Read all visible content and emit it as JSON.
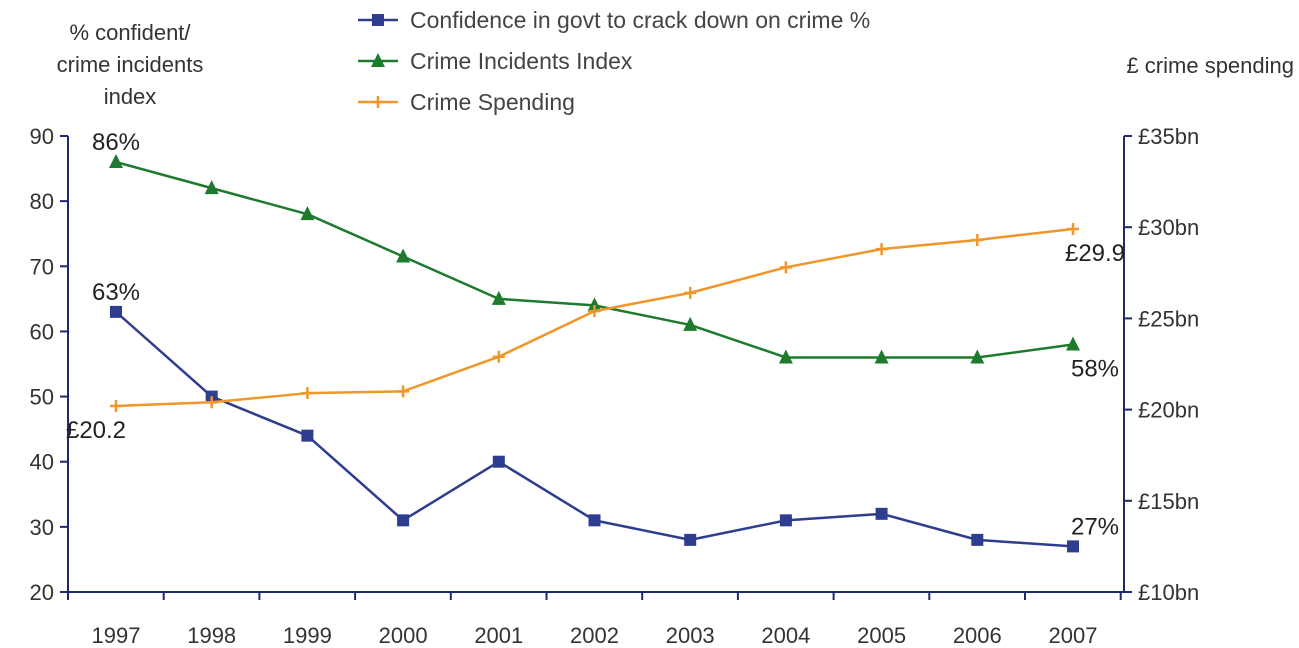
{
  "chart_data": {
    "type": "line",
    "categories": [
      "1997",
      "1998",
      "1999",
      "2000",
      "2001",
      "2002",
      "2003",
      "2004",
      "2005",
      "2006",
      "2007"
    ],
    "left_axis": {
      "label_lines": [
        "% confident/",
        "crime incidents",
        "index"
      ],
      "ylim": [
        20,
        90
      ],
      "ticks": [
        "20",
        "30",
        "40",
        "50",
        "60",
        "70",
        "80",
        "90"
      ]
    },
    "right_axis": {
      "label": "£ crime spending",
      "ylim": [
        10,
        35
      ],
      "ticks": [
        "£10bn",
        "£15bn",
        "£20bn",
        "£25bn",
        "£30bn",
        "£35bn"
      ]
    },
    "series": [
      {
        "name": "Confidence in govt to crack down on crime %",
        "axis": "left",
        "color": "#2f3d8f",
        "marker": "square",
        "values": [
          63,
          50,
          44,
          31,
          40,
          31,
          28,
          31,
          32,
          28,
          27
        ]
      },
      {
        "name": "Crime Incidents Index",
        "axis": "left",
        "color": "#1e7a2c",
        "marker": "triangle",
        "values": [
          86,
          82,
          78,
          71.5,
          65,
          64,
          61,
          56,
          56,
          56,
          58
        ]
      },
      {
        "name": "Crime Spending",
        "axis": "right",
        "color": "#f0962a",
        "marker": "plus",
        "values": [
          20.2,
          20.4,
          20.9,
          21.0,
          22.9,
          25.4,
          26.4,
          27.8,
          28.8,
          29.3,
          29.9
        ]
      }
    ],
    "annotations": [
      {
        "text": "86%",
        "series": 1,
        "index": 0,
        "pos": "above"
      },
      {
        "text": "63%",
        "series": 0,
        "index": 0,
        "pos": "above"
      },
      {
        "text": "£20.2",
        "series": 2,
        "index": 0,
        "pos": "below"
      },
      {
        "text": "£29.9",
        "series": 2,
        "index": 10,
        "pos": "below"
      },
      {
        "text": "58%",
        "series": 1,
        "index": 10,
        "pos": "below"
      },
      {
        "text": "27%",
        "series": 0,
        "index": 10,
        "pos": "above"
      }
    ]
  }
}
